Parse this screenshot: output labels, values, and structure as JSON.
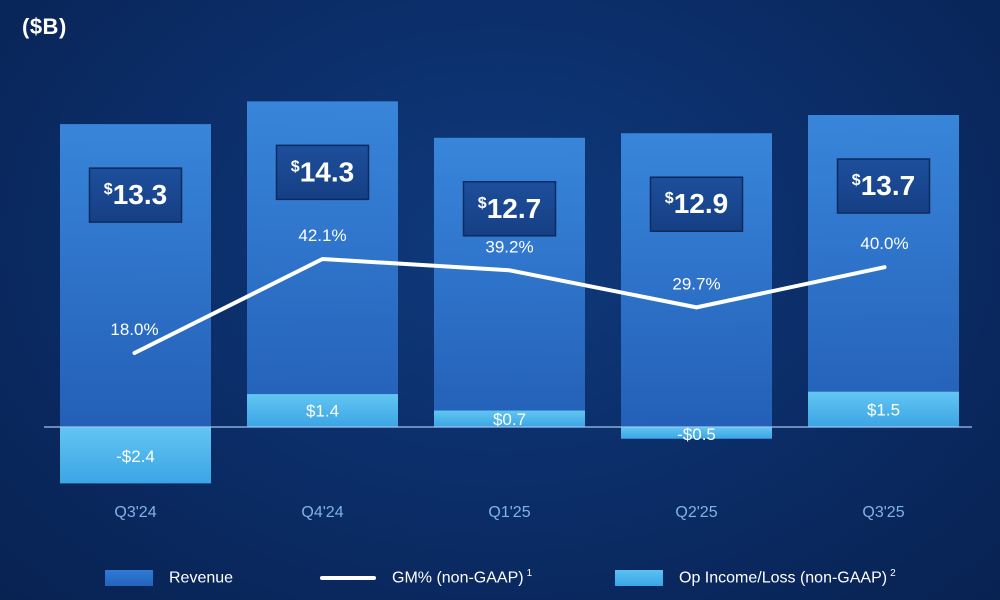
{
  "unit_label": "($B)",
  "chart_data": {
    "type": "bar",
    "categories": [
      "Q3'24",
      "Q4'24",
      "Q1'25",
      "Q2'25",
      "Q3'25"
    ],
    "series": [
      {
        "name": "Revenue",
        "kind": "bar",
        "values": [
          13.3,
          14.3,
          12.7,
          12.9,
          13.7
        ],
        "labels": [
          "13.3",
          "14.3",
          "12.7",
          "12.9",
          "13.7"
        ],
        "color": "#2b74d2"
      },
      {
        "name": "GM% (non-GAAP)",
        "kind": "line",
        "values": [
          18.0,
          42.1,
          39.2,
          29.7,
          40.0
        ],
        "labels": [
          "18.0%",
          "42.1%",
          "39.2%",
          "29.7%",
          "40.0%"
        ],
        "color": "#ffffff"
      },
      {
        "name": "Op Income/Loss (non-GAAP)",
        "kind": "bar",
        "values": [
          -2.4,
          1.4,
          0.7,
          -0.5,
          1.5
        ],
        "labels": [
          "-$2.4",
          "$1.4",
          "$0.7",
          "-$0.5",
          "$1.5"
        ],
        "color": "#4fb5ef"
      }
    ],
    "currency_symbol": "$",
    "legend": {
      "position": "bottom",
      "items": [
        {
          "label": "Revenue",
          "note": ""
        },
        {
          "label": "GM% (non-GAAP)",
          "note": "1"
        },
        {
          "label": "Op Income/Loss (non-GAAP)",
          "note": "2"
        }
      ]
    },
    "grid": false
  }
}
